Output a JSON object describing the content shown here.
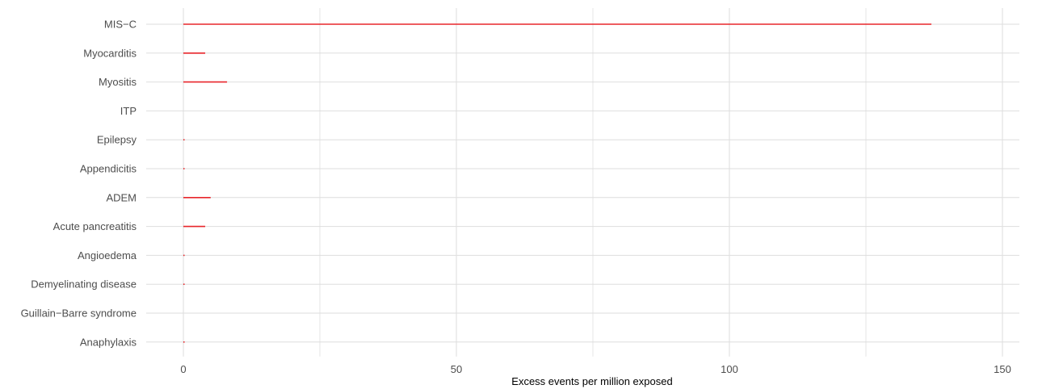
{
  "chart_data": {
    "type": "bar",
    "orientation": "horizontal",
    "title": "",
    "xlabel": "Excess events per million exposed",
    "ylabel": "",
    "xlim": [
      -6,
      155
    ],
    "xticks": [
      0,
      50,
      100,
      150
    ],
    "grid": true,
    "categories": [
      "MIS−C",
      "Myocarditis",
      "Myositis",
      "ITP",
      "Epilepsy",
      "Appendicitis",
      "ADEM",
      "Acute pancreatitis",
      "Angioedema",
      "Demyelinating disease",
      "Guillain−Barre syndrome",
      "Anaphylaxis"
    ],
    "values": [
      137,
      4,
      8,
      0,
      0.1,
      0.1,
      5,
      4,
      0.1,
      0.1,
      0,
      0.1
    ],
    "colors": {
      "bar": "#e8262b",
      "grid": "#dedede",
      "tick_text": "#4d4d4d",
      "axis_title": "#000000"
    }
  }
}
